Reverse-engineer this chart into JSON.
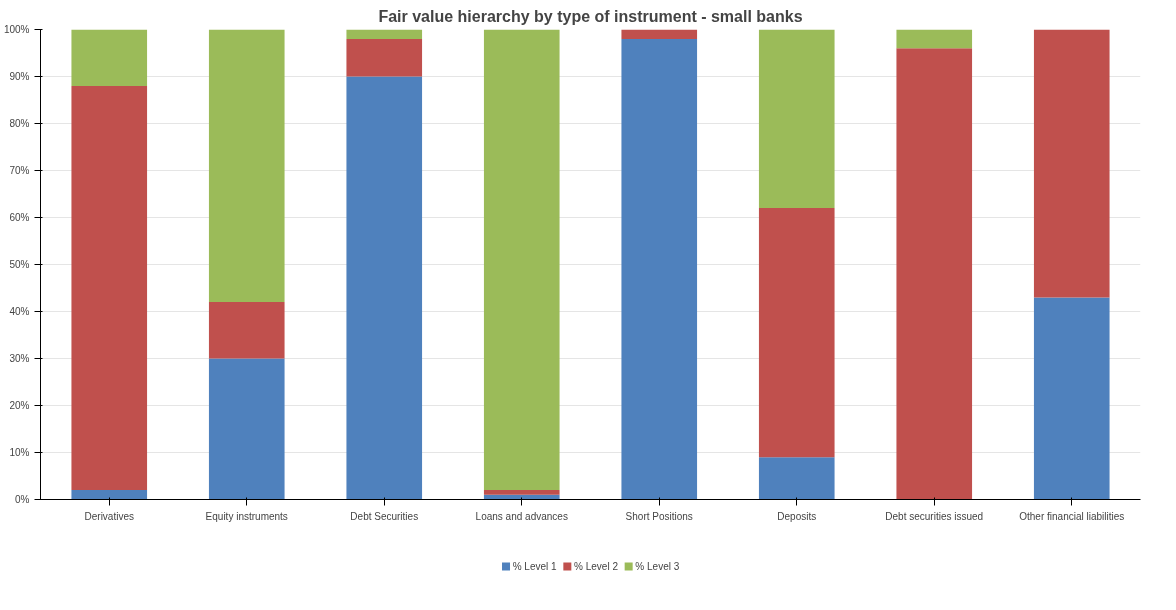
{
  "chart_data": {
    "type": "bar",
    "stacked": true,
    "title": "Fair value hierarchy by type of instrument - small banks",
    "categories": [
      "Derivatives",
      "Equity instruments",
      "Debt Securities",
      "Loans and advances",
      "Short Positions",
      "Deposits",
      "Debt securities issued",
      "Other financial liabilities"
    ],
    "series": [
      {
        "name": "% Level 1",
        "color": "#4f81bd",
        "values": [
          2,
          30,
          90,
          1,
          98,
          9,
          0,
          43
        ]
      },
      {
        "name": "% Level 2",
        "color": "#c0504d",
        "values": [
          86,
          12,
          8,
          1,
          2,
          53,
          96,
          57
        ]
      },
      {
        "name": "% Level 3",
        "color": "#9bbb59",
        "values": [
          12,
          58,
          2,
          98,
          0,
          38,
          4,
          0
        ]
      }
    ],
    "ylim": [
      0,
      100
    ],
    "yticks": [
      {
        "value": 0,
        "label": "0%"
      },
      {
        "value": 10,
        "label": "10%"
      },
      {
        "value": 20,
        "label": "20%"
      },
      {
        "value": 30,
        "label": "30%"
      },
      {
        "value": 40,
        "label": "40%"
      },
      {
        "value": 50,
        "label": "50%"
      },
      {
        "value": 60,
        "label": "60%"
      },
      {
        "value": 70,
        "label": "70%"
      },
      {
        "value": 80,
        "label": "80%"
      },
      {
        "value": 90,
        "label": "90%"
      },
      {
        "value": 100,
        "label": "100%"
      }
    ],
    "grid": "y",
    "legend": "bottom"
  }
}
